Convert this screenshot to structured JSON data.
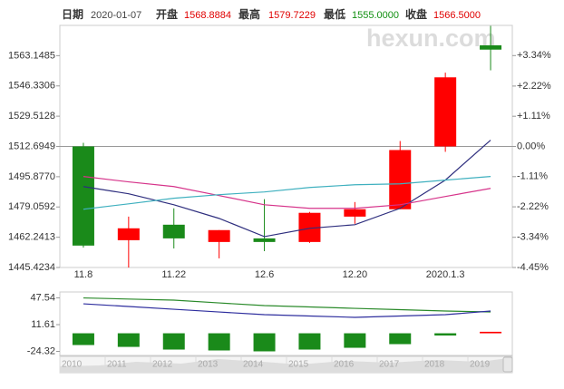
{
  "header": {
    "date_label": "日期",
    "date": "2020-01-07",
    "open_label": "开盘",
    "open": "1568.8884",
    "high_label": "最高",
    "high": "1579.7229",
    "low_label": "最低",
    "low": "1555.0000",
    "close_label": "收盘",
    "close": "1566.5000"
  },
  "watermark": "hexun.com",
  "chart_data": [
    {
      "type": "candlestick",
      "categories": [
        "11.8",
        null,
        "11.22",
        null,
        "12.6",
        null,
        "12.20",
        null,
        "2020.1.3",
        null
      ],
      "open": [
        1512.7,
        1460.6,
        1469.2,
        1459.6,
        1461.6,
        1459.6,
        1473.7,
        1477.8,
        1512.7,
        1568.8884
      ],
      "high": [
        1514.7,
        1473.7,
        1478.3,
        1466.2,
        1483.4,
        1476.3,
        1481.8,
        1515.7,
        1553.7,
        1579.7229
      ],
      "low": [
        1456.5,
        1445.4,
        1456.0,
        1450.5,
        1454.5,
        1459.1,
        1469.7,
        1477.8,
        1509.7,
        1555.0
      ],
      "close": [
        1457.6,
        1467.2,
        1461.6,
        1466.2,
        1459.6,
        1475.8,
        1477.8,
        1510.7,
        1551.1,
        1566.5
      ],
      "up_color": "#ff0000",
      "down_color": "#1a8a1a",
      "lines": [
        {
          "color": "#2e2e7e",
          "values": [
            1490.4,
            1486.4,
            1480.3,
            1472.7,
            1462.6,
            1467.2,
            1469.2,
            1478.3,
            1494.0,
            1516.2
          ]
        },
        {
          "color": "#d6338a",
          "values": [
            1496.0,
            1493.0,
            1490.4,
            1485.4,
            1480.3,
            1478.3,
            1478.3,
            1480.3,
            1484.9,
            1489.4
          ]
        },
        {
          "color": "#3fb0bf",
          "values": [
            1477.8,
            1480.8,
            1483.9,
            1485.9,
            1487.4,
            1489.9,
            1491.4,
            1491.9,
            1494.0,
            1496.0
          ]
        }
      ],
      "ylim": [
        1445.4234,
        1579.9664
      ],
      "yticks": [
        1445.4234,
        1462.2413,
        1479.0592,
        1495.877,
        1512.6949,
        1529.5128,
        1546.3306,
        1563.1485
      ],
      "yticks_labels_fixed": [
        {
          "value": 1495.877,
          "label": "1495.8770"
        }
      ],
      "y2lim": [
        -4.45,
        4.45
      ],
      "y2ticks": [
        {
          "value": -4.45,
          "label": "-4.45%"
        },
        {
          "value": -3.34,
          "label": "-3.34%"
        },
        {
          "value": -2.22,
          "label": "-2.22%"
        },
        {
          "value": -1.11,
          "label": "-1.11%"
        },
        {
          "value": 0,
          "label": "0.00%"
        },
        {
          "value": 1.11,
          "label": "+1.11%"
        },
        {
          "value": 2.22,
          "label": "+2.22%"
        },
        {
          "value": 3.34,
          "label": "+3.34%"
        }
      ],
      "zero_line": true
    },
    {
      "type": "bar",
      "values": [
        -15.8,
        -18.3,
        -21.9,
        -23.1,
        -24.3,
        -21.9,
        -19.5,
        -14.6,
        -3,
        2
      ],
      "up_color": "#ff0000",
      "down_color": "#1a8a1a",
      "lines": [
        {
          "color": "#2a8a2a",
          "values": [
            47.5,
            46.0,
            44.5,
            40.8,
            37.2,
            35.4,
            33.5,
            31.7,
            29.9,
            28.7
          ]
        },
        {
          "color": "#2e2e9e",
          "values": [
            39.6,
            36.0,
            32.3,
            28.6,
            25.0,
            23.2,
            21.4,
            23.2,
            25.0,
            29.9
          ]
        }
      ],
      "ylim": [
        -29.8,
        55.5
      ],
      "yticks": [
        -24.32,
        11.61,
        47.54
      ]
    }
  ],
  "timeline": [
    "2010",
    "2011",
    "2012",
    "2013",
    "2014",
    "2015",
    "2016",
    "2017",
    "2018",
    "2019"
  ]
}
